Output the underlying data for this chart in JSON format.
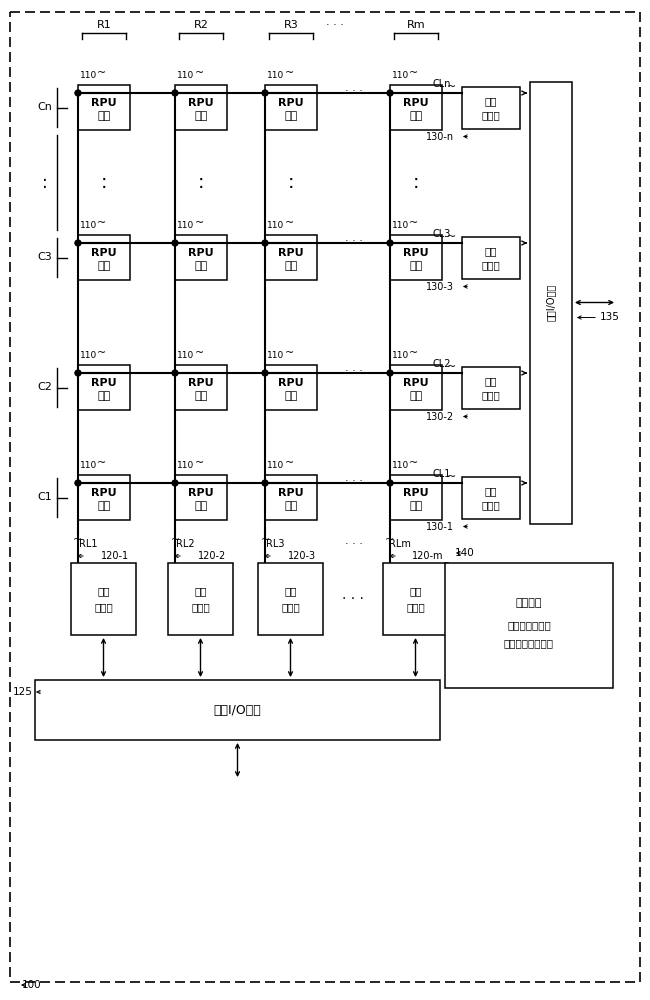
{
  "fig_width": 6.5,
  "fig_height": 10.0,
  "dpi": 100,
  "rows": [
    "Cn",
    "C3",
    "C2",
    "C1"
  ],
  "cols": [
    "R1",
    "R2",
    "R3",
    "Rm"
  ],
  "rl_labels": [
    "RL1",
    "RL2",
    "RL3",
    "RLm"
  ],
  "cl_labels": [
    "CLn",
    "CL3",
    "CL2",
    "CL1"
  ],
  "cl_labels_display": [
    "CLn",
    "CL3",
    "CL2",
    "CL1"
  ],
  "right_ext_refs": [
    "130-n",
    "130-3",
    "130-2",
    "130-1"
  ],
  "bot_ext_refs": [
    "120-1",
    "120-2",
    "120-3",
    "120-m"
  ],
  "rpu_line1": "RPU",
  "rpu_line2": "单元",
  "rpu_ref": "110",
  "outer_circ_l1": "外围",
  "outer_circ_l2": "电路块",
  "data_io": "数据I/O接口",
  "ref_circ_l1": "参考电路",
  "ref_circ_l2": "（电源、时钟、",
  "ref_circ_l3": "偏置电压，定时）",
  "ref_135": "135",
  "ref_125": "125",
  "ref_140": "140",
  "ref_100": "100"
}
